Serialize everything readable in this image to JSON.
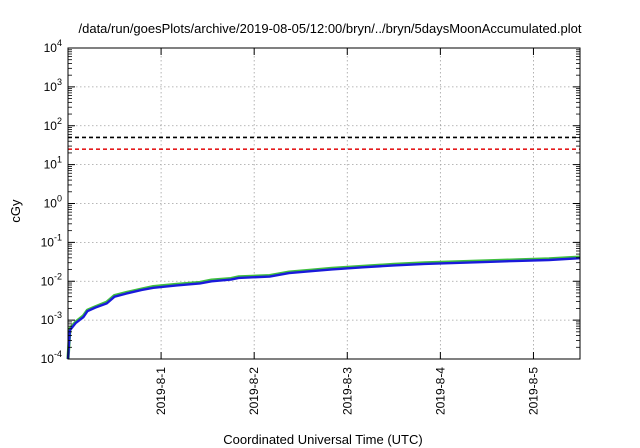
{
  "chart_data": {
    "type": "line",
    "title": "/data/run/goesPlots/archive/2019-08-05/12:00/bryn/../bryn/5daysMoonAccumulated.plot",
    "xlabel": "Coordinated Universal Time (UTC)",
    "ylabel": "cGy",
    "y_scale": "log",
    "ylim": [
      0.0001,
      10000
    ],
    "xlim": [
      "2019-07-31T00:00",
      "2019-08-05T12:00"
    ],
    "grid": true,
    "x_ticks": [
      {
        "x": "2019-08-01T00:00",
        "label": "2019-8-1"
      },
      {
        "x": "2019-08-02T00:00",
        "label": "2019-8-2"
      },
      {
        "x": "2019-08-03T00:00",
        "label": "2019-8-3"
      },
      {
        "x": "2019-08-04T00:00",
        "label": "2019-8-4"
      },
      {
        "x": "2019-08-05T00:00",
        "label": "2019-8-5"
      }
    ],
    "y_ticks": [
      {
        "value": 0.0001,
        "base": "10",
        "exp": "-4"
      },
      {
        "value": 0.001,
        "base": "10",
        "exp": "-3"
      },
      {
        "value": 0.01,
        "base": "10",
        "exp": "-2"
      },
      {
        "value": 0.1,
        "base": "10",
        "exp": "-1"
      },
      {
        "value": 1,
        "base": "10",
        "exp": "0"
      },
      {
        "value": 10,
        "base": "10",
        "exp": "1"
      },
      {
        "value": 100,
        "base": "10",
        "exp": "2"
      },
      {
        "value": 1000,
        "base": "10",
        "exp": "3"
      },
      {
        "value": 10000,
        "base": "10",
        "exp": "4"
      }
    ],
    "reference_lines": [
      {
        "y": 50,
        "color": "#000000",
        "style": "dashed"
      },
      {
        "y": 25,
        "color": "#e41a1c",
        "style": "dashed"
      }
    ],
    "series": [
      {
        "color": "#3fbf3f",
        "points": [
          [
            "2019-07-31T00:00",
            0.0001
          ],
          [
            "2019-07-31T00:30",
            0.0006
          ],
          [
            "2019-07-31T02:00",
            0.0009
          ],
          [
            "2019-07-31T04:00",
            0.0013
          ],
          [
            "2019-07-31T05:00",
            0.0018
          ],
          [
            "2019-07-31T07:00",
            0.0022
          ],
          [
            "2019-07-31T10:00",
            0.0029
          ],
          [
            "2019-07-31T12:00",
            0.0043
          ],
          [
            "2019-07-31T15:00",
            0.0051
          ],
          [
            "2019-07-31T19:00",
            0.0063
          ],
          [
            "2019-07-31T22:00",
            0.0073
          ],
          [
            "2019-08-01T04:00",
            0.0083
          ],
          [
            "2019-08-01T10:00",
            0.0093
          ],
          [
            "2019-08-01T13:00",
            0.0107
          ],
          [
            "2019-08-01T18:00",
            0.0117
          ],
          [
            "2019-08-01T20:00",
            0.013
          ],
          [
            "2019-08-02T04:00",
            0.014
          ],
          [
            "2019-08-02T09:00",
            0.0172
          ],
          [
            "2019-08-02T15:00",
            0.0193
          ],
          [
            "2019-08-02T20:00",
            0.0215
          ],
          [
            "2019-08-03T04:00",
            0.0242
          ],
          [
            "2019-08-03T12:00",
            0.0272
          ],
          [
            "2019-08-03T20:00",
            0.0298
          ],
          [
            "2019-08-04T04:00",
            0.0315
          ],
          [
            "2019-08-04T12:00",
            0.0335
          ],
          [
            "2019-08-04T20:00",
            0.0355
          ],
          [
            "2019-08-05T04:00",
            0.0375
          ],
          [
            "2019-08-05T12:00",
            0.0418
          ]
        ]
      },
      {
        "color": "#1a1adb",
        "points": [
          [
            "2019-07-31T00:00",
            0.0001
          ],
          [
            "2019-07-31T00:30",
            0.00055
          ],
          [
            "2019-07-31T02:00",
            0.00085
          ],
          [
            "2019-07-31T04:00",
            0.0012
          ],
          [
            "2019-07-31T05:00",
            0.0017
          ],
          [
            "2019-07-31T07:00",
            0.0021
          ],
          [
            "2019-07-31T10:00",
            0.0027
          ],
          [
            "2019-07-31T12:00",
            0.004
          ],
          [
            "2019-07-31T15:00",
            0.0048
          ],
          [
            "2019-07-31T19:00",
            0.006
          ],
          [
            "2019-07-31T22:00",
            0.0068
          ],
          [
            "2019-08-01T04:00",
            0.0078
          ],
          [
            "2019-08-01T10:00",
            0.0088
          ],
          [
            "2019-08-01T13:00",
            0.01
          ],
          [
            "2019-08-01T18:00",
            0.011
          ],
          [
            "2019-08-01T20:00",
            0.0122
          ],
          [
            "2019-08-02T04:00",
            0.0132
          ],
          [
            "2019-08-02T09:00",
            0.0162
          ],
          [
            "2019-08-02T15:00",
            0.0182
          ],
          [
            "2019-08-02T20:00",
            0.0202
          ],
          [
            "2019-08-03T04:00",
            0.0228
          ],
          [
            "2019-08-03T12:00",
            0.0255
          ],
          [
            "2019-08-03T20:00",
            0.028
          ],
          [
            "2019-08-04T04:00",
            0.0297
          ],
          [
            "2019-08-04T12:00",
            0.0315
          ],
          [
            "2019-08-04T20:00",
            0.0333
          ],
          [
            "2019-08-05T04:00",
            0.0352
          ],
          [
            "2019-08-05T12:00",
            0.0392
          ]
        ]
      }
    ]
  }
}
